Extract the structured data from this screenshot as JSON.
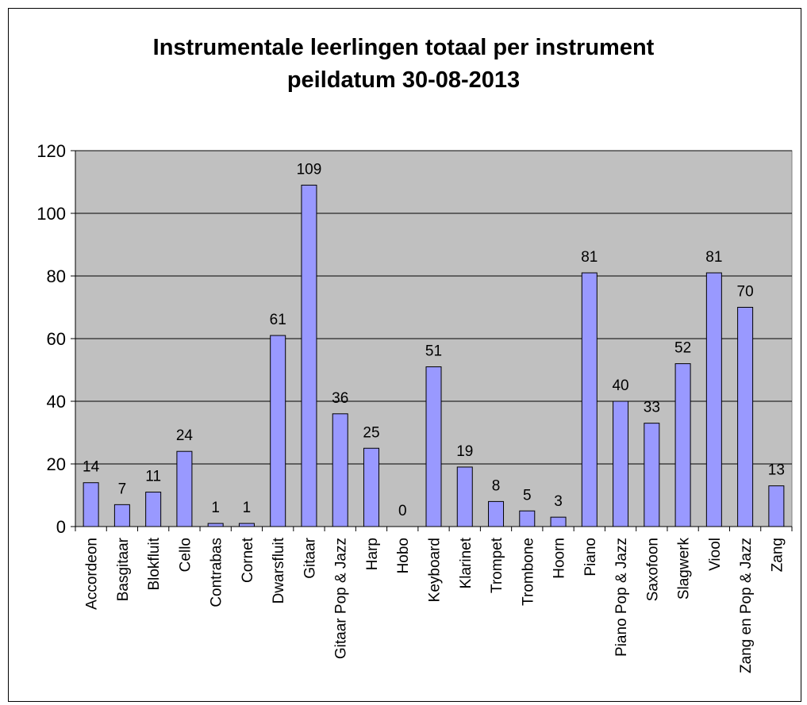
{
  "chart_data": {
    "type": "bar",
    "title": "Instrumentale leerlingen totaal per instrument",
    "subtitle": "peildatum 30-08-2013",
    "xlabel": "",
    "ylabel": "",
    "ylim": [
      0,
      120
    ],
    "yticks": [
      0,
      20,
      40,
      60,
      80,
      100,
      120
    ],
    "grid": true,
    "legend": "none",
    "categories": [
      "Accordeon",
      "Basgitaar",
      "Blokfluit",
      "Cello",
      "Contrabas",
      "Cornet",
      "Dwarsfluit",
      "Gitaar",
      "Gitaar Pop & Jazz",
      "Harp",
      "Hobo",
      "Keyboard",
      "Klarinet",
      "Trompet",
      "Trombone",
      "Hoorn",
      "Piano",
      "Piano Pop & Jazz",
      "Saxofoon",
      "Slagwerk",
      "Viool",
      "Zang en Pop & Jazz",
      "Zang"
    ],
    "values": [
      14,
      7,
      11,
      24,
      1,
      1,
      61,
      109,
      36,
      25,
      0,
      51,
      19,
      8,
      5,
      3,
      81,
      40,
      33,
      52,
      81,
      70,
      13
    ],
    "data_labels": [
      "14",
      "7",
      "11",
      "24",
      "1",
      "1",
      "61",
      "109",
      "36",
      "25",
      "0",
      "51",
      "19",
      "8",
      "5",
      "3",
      "81",
      "40",
      "33",
      "52",
      "81",
      "70",
      "13"
    ],
    "colors": {
      "bar_fill": "#9999ff",
      "bar_stroke": "#000000",
      "plot_background": "#c0c0c0",
      "gridline": "#000000"
    }
  }
}
